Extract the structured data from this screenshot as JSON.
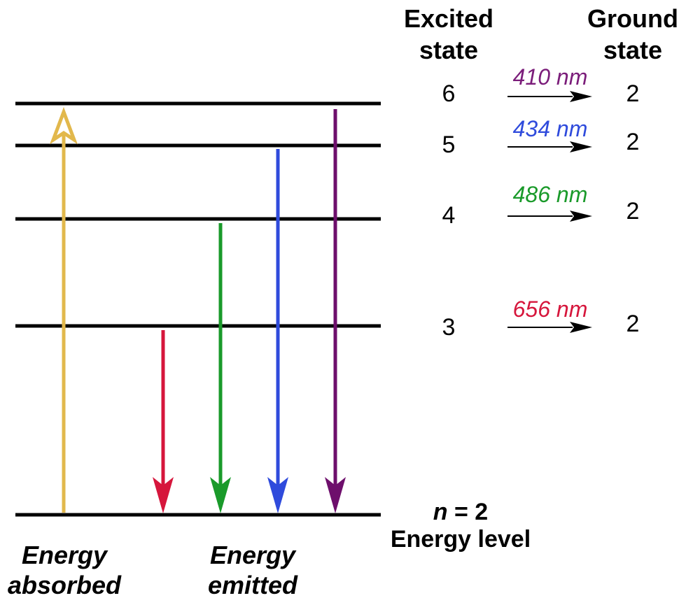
{
  "headers": {
    "excited_line1": "Excited",
    "excited_line2": "state",
    "ground_line1": "Ground",
    "ground_line2": "state"
  },
  "transitions": [
    {
      "excited": "6",
      "ground": "2",
      "wavelength": "410 nm",
      "color": "#7b1d7a"
    },
    {
      "excited": "5",
      "ground": "2",
      "wavelength": "434 nm",
      "color": "#2f4bdc"
    },
    {
      "excited": "4",
      "ground": "2",
      "wavelength": "486 nm",
      "color": "#1a9a2a"
    },
    {
      "excited": "3",
      "ground": "2",
      "wavelength": "656 nm",
      "color": "#d6163c"
    }
  ],
  "base_level": {
    "n_symbol": "n",
    "n_value": " = 2",
    "caption": "Energy level"
  },
  "labels": {
    "absorbed_line1": "Energy",
    "absorbed_line2": "absorbed",
    "emitted_line1": "Energy",
    "emitted_line2": "emitted"
  },
  "colors": {
    "absorbed_arrow": "#e2b84c",
    "level_line": "#000000",
    "red_arrow": "#d6163c",
    "green_arrow": "#1a9a2a",
    "blue_arrow": "#2f4bdc",
    "purple_arrow": "#6e0f6c"
  }
}
